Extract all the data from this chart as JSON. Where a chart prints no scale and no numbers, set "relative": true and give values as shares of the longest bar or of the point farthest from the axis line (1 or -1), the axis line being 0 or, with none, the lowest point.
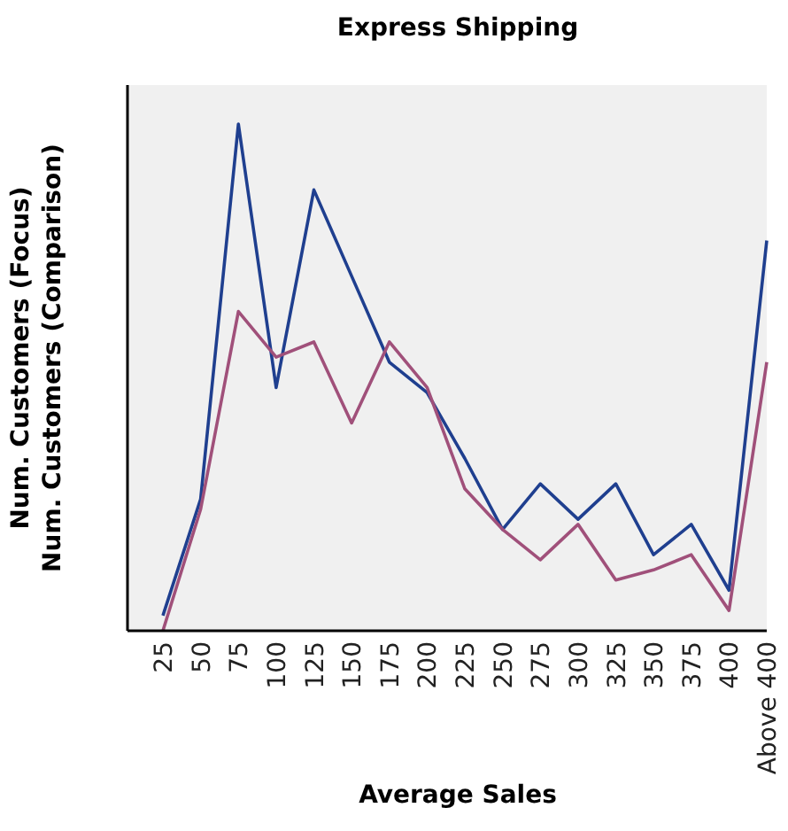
{
  "chart_data": {
    "type": "line",
    "title": "Express Shipping",
    "xlabel": "Average Sales",
    "ylabel": "Num. Customers (Focus)\nNum. Customers (Comparison)",
    "relative": true,
    "categories": [
      "25",
      "50",
      "75",
      "100",
      "125",
      "150",
      "175",
      "200",
      "225",
      "250",
      "275",
      "300",
      "325",
      "350",
      "375",
      "400",
      "Above 400"
    ],
    "series": [
      {
        "color": "#1f3f8f",
        "values": [
          0.03,
          0.26,
          1,
          0.48,
          0.87,
          0.7,
          0.53,
          0.47,
          0.34,
          0.2,
          0.29,
          0.22,
          0.29,
          0.15,
          0.21,
          0.08,
          0.77
        ]
      },
      {
        "color": "#a0507a",
        "values": [
          0,
          0.24,
          0.63,
          0.54,
          0.57,
          0.41,
          0.57,
          0.48,
          0.28,
          0.2,
          0.14,
          0.21,
          0.1,
          0.12,
          0.15,
          0.04,
          0.53
        ]
      }
    ]
  }
}
